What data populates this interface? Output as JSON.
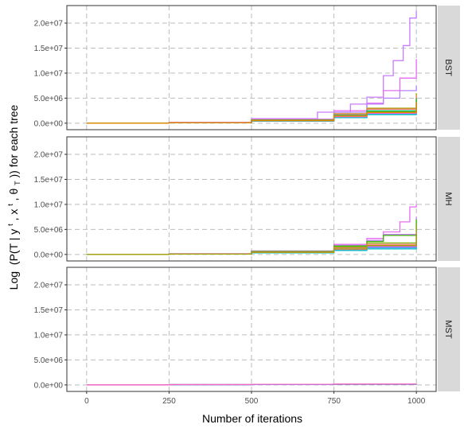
{
  "chart_data": {
    "type": "line",
    "xlabel": "Number of iterations",
    "ylabel_parts": {
      "log": "Log",
      "body1": "(P(T  |  y",
      "sup1": "t",
      "mid": ",  x",
      "sup2": "t",
      "mid2": ",  θ",
      "sub": "T",
      "end": ")) for each tree"
    },
    "xlim": [
      -60,
      1060
    ],
    "ylim": [
      -1300000,
      23500000
    ],
    "x_ticks": [
      0,
      250,
      500,
      750,
      1000
    ],
    "x_tick_labels": [
      "0",
      "250",
      "500",
      "750",
      "1000"
    ],
    "y_ticks": [
      0,
      5000000,
      10000000,
      15000000,
      20000000
    ],
    "y_tick_labels": [
      "0.0e+00",
      "5.0e+06",
      "1.0e+07",
      "1.5e+07",
      "2.0e+07"
    ],
    "grid": true,
    "legend": "none",
    "panels": [
      {
        "name": "BST",
        "series": [
          {
            "color": "#c77cff",
            "x": [
              0,
              250,
              500,
              700,
              800,
              850,
              900,
              930,
              960,
              980,
              1000
            ],
            "y": [
              0,
              150000,
              900000,
              2200000,
              3800000,
              5200000,
              9500000,
              12500000,
              15500000,
              21000000,
              22500000
            ]
          },
          {
            "color": "#e76bf3",
            "x": [
              0,
              250,
              500,
              750,
              850,
              900,
              950,
              1000
            ],
            "y": [
              0,
              140000,
              800000,
              2500000,
              4000000,
              6500000,
              9000000,
              12800000
            ]
          },
          {
            "color": "#b983ff",
            "x": [
              0,
              250,
              500,
              750,
              850,
              900,
              950,
              1000
            ],
            "y": [
              0,
              130000,
              700000,
              2200000,
              3800000,
              5000000,
              6500000,
              7500000
            ]
          },
          {
            "color": "#a3a500",
            "x": [
              0,
              250,
              500,
              750,
              850,
              1000
            ],
            "y": [
              0,
              120000,
              650000,
              1900000,
              3000000,
              6000000
            ]
          },
          {
            "color": "#f8766d",
            "x": [
              0,
              250,
              500,
              750,
              850,
              1000
            ],
            "y": [
              0,
              110000,
              600000,
              1800000,
              2800000,
              5500000
            ]
          },
          {
            "color": "#00bf7d",
            "x": [
              0,
              250,
              500,
              750,
              850,
              1000
            ],
            "y": [
              0,
              100000,
              550000,
              1600000,
              2500000,
              5000000
            ]
          },
          {
            "color": "#00b0f6",
            "x": [
              0,
              250,
              500,
              750,
              850,
              1000
            ],
            "y": [
              0,
              100000,
              500000,
              1400000,
              2200000,
              4500000
            ]
          },
          {
            "color": "#619cff",
            "x": [
              0,
              250,
              500,
              750,
              850,
              1000
            ],
            "y": [
              0,
              90000,
              450000,
              1200000,
              1900000,
              3500000
            ]
          },
          {
            "color": "#00bfc4",
            "x": [
              0,
              250,
              500,
              750,
              850,
              1000
            ],
            "y": [
              0,
              80000,
              400000,
              1100000,
              1700000,
              3000000
            ]
          },
          {
            "color": "#ff61c3",
            "x": [
              0,
              250,
              500,
              750,
              850,
              1000
            ],
            "y": [
              0,
              90000,
              500000,
              1300000,
              2000000,
              4000000
            ]
          },
          {
            "color": "#39b600",
            "x": [
              0,
              250,
              500,
              750,
              850,
              1000
            ],
            "y": [
              0,
              100000,
              550000,
              1500000,
              2300000,
              4800000
            ]
          },
          {
            "color": "#e58700",
            "x": [
              0,
              250,
              500,
              750,
              850,
              1000
            ],
            "y": [
              0,
              100000,
              520000,
              1450000,
              2150000,
              4200000
            ]
          }
        ]
      },
      {
        "name": "MH",
        "series": [
          {
            "color": "#e76bf3",
            "x": [
              0,
              250,
              500,
              750,
              850,
              900,
              950,
              980,
              1000
            ],
            "y": [
              0,
              140000,
              700000,
              2000000,
              3200000,
              4500000,
              6500000,
              9500000,
              10000000
            ]
          },
          {
            "color": "#c77cff",
            "x": [
              0,
              250,
              500,
              750,
              850,
              900,
              1000
            ],
            "y": [
              0,
              130000,
              650000,
              1800000,
              2800000,
              4000000,
              7500000
            ]
          },
          {
            "color": "#39b600",
            "x": [
              0,
              250,
              500,
              750,
              850,
              900,
              1000
            ],
            "y": [
              0,
              120000,
              600000,
              1700000,
              2600000,
              3800000,
              7000000
            ]
          },
          {
            "color": "#7cae00",
            "x": [
              0,
              250,
              500,
              750,
              850,
              1000
            ],
            "y": [
              0,
              110000,
              550000,
              1500000,
              2300000,
              6000000
            ]
          },
          {
            "color": "#f8766d",
            "x": [
              0,
              250,
              500,
              750,
              850,
              1000
            ],
            "y": [
              0,
              100000,
              500000,
              1300000,
              2000000,
              4500000
            ]
          },
          {
            "color": "#00bf7d",
            "x": [
              0,
              250,
              500,
              750,
              850,
              1000
            ],
            "y": [
              0,
              90000,
              450000,
              1100000,
              1700000,
              4000000
            ]
          },
          {
            "color": "#00b0f6",
            "x": [
              0,
              250,
              500,
              750,
              850,
              1000
            ],
            "y": [
              0,
              80000,
              400000,
              1000000,
              1500000,
              3000000
            ]
          },
          {
            "color": "#619cff",
            "x": [
              0,
              250,
              500,
              750,
              850,
              1000
            ],
            "y": [
              0,
              70000,
              350000,
              900000,
              1300000,
              2500000
            ]
          },
          {
            "color": "#00bfc4",
            "x": [
              0,
              250,
              500,
              750,
              850,
              1000
            ],
            "y": [
              0,
              70000,
              300000,
              800000,
              1100000,
              2000000
            ]
          },
          {
            "color": "#ff61c3",
            "x": [
              0,
              250,
              500,
              750,
              850,
              1000
            ],
            "y": [
              0,
              80000,
              400000,
              1000000,
              1600000,
              3500000
            ]
          },
          {
            "color": "#a3a500",
            "x": [
              0,
              250,
              500,
              750,
              850,
              1000
            ],
            "y": [
              0,
              90000,
              420000,
              1100000,
              1800000,
              4200000
            ]
          }
        ]
      },
      {
        "name": "MST",
        "series": [
          {
            "color": "#00bfc4",
            "x": [
              0,
              250,
              500,
              750,
              1000
            ],
            "y": [
              0,
              40000,
              80000,
              120000,
              160000
            ]
          },
          {
            "color": "#c77cff",
            "x": [
              0,
              250,
              500,
              750,
              1000
            ],
            "y": [
              0,
              50000,
              100000,
              150000,
              200000
            ]
          },
          {
            "color": "#f8766d",
            "x": [
              0,
              250,
              500,
              750,
              1000
            ],
            "y": [
              0,
              60000,
              120000,
              180000,
              250000
            ]
          },
          {
            "color": "#00b0f6",
            "x": [
              0,
              250,
              500,
              750,
              1000
            ],
            "y": [
              0,
              45000,
              90000,
              135000,
              180000
            ]
          },
          {
            "color": "#ff61c3",
            "x": [
              0,
              250,
              500,
              750,
              1000
            ],
            "y": [
              0,
              55000,
              110000,
              165000,
              230000
            ]
          }
        ]
      }
    ]
  }
}
